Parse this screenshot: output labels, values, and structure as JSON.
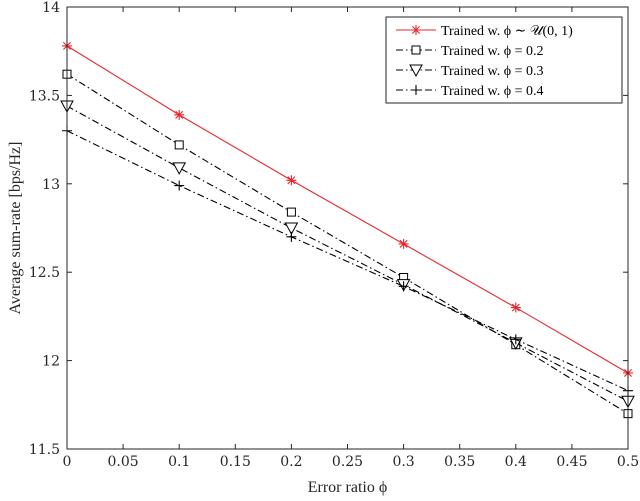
{
  "chart_data": {
    "type": "line",
    "xlabel": "Error ratio ϕ",
    "ylabel": "Average sum-rate [bps/Hz]",
    "x": [
      0,
      0.1,
      0.2,
      0.3,
      0.4,
      0.5
    ],
    "xlim": [
      0,
      0.5
    ],
    "ylim": [
      11.5,
      14
    ],
    "xticks": [
      "0",
      "0.05",
      "0.1",
      "0.15",
      "0.2",
      "0.25",
      "0.3",
      "0.35",
      "0.4",
      "0.45",
      "0.5"
    ],
    "yticks": [
      "11.5",
      "12",
      "12.5",
      "13",
      "13.5",
      "14"
    ],
    "grid": false,
    "legend_position": "top-right",
    "series": [
      {
        "name": "Trained w. ϕ ∼ 𝒰(0, 1)",
        "color": "#e8272b",
        "marker": "asterisk",
        "line": "solid",
        "values": [
          13.78,
          13.39,
          13.02,
          12.66,
          12.3,
          11.93
        ]
      },
      {
        "name": "Trained w. ϕ = 0.2",
        "color": "#000000",
        "marker": "square",
        "line": "dashdot",
        "values": [
          13.62,
          13.22,
          12.84,
          12.47,
          12.09,
          11.7
        ]
      },
      {
        "name": "Trained w. ϕ = 0.3",
        "color": "#000000",
        "marker": "triangle-down",
        "line": "dashdot",
        "values": [
          13.44,
          13.09,
          12.75,
          12.43,
          12.1,
          11.77
        ]
      },
      {
        "name": "Trained w. ϕ = 0.4",
        "color": "#000000",
        "marker": "plus",
        "line": "dashdot",
        "values": [
          13.3,
          12.99,
          12.7,
          12.42,
          12.12,
          11.83
        ]
      }
    ]
  }
}
